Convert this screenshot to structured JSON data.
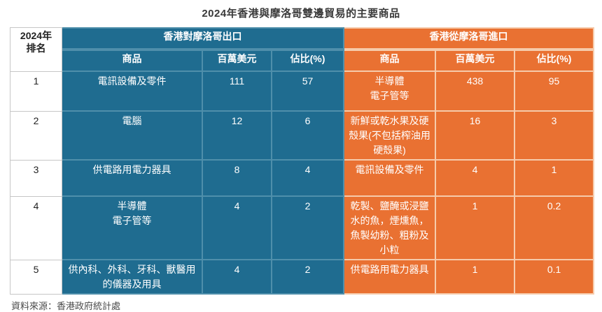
{
  "title": "2024年香港與摩洛哥雙邊貿易的主要商品",
  "source": "資料來源：香港政府統計處",
  "colors": {
    "export_bg": "#1F6C90",
    "import_bg": "#E97132",
    "header_text": "#FFFFFF",
    "rank_text": "#222222"
  },
  "table": {
    "rank_header": "2024年\n排名",
    "groups": {
      "export": "香港對摩洛哥出口",
      "import": "香港從摩洛哥進口"
    },
    "columns": {
      "product": "商品",
      "value": "百萬美元",
      "share": "佔比(%)"
    },
    "rows": [
      {
        "rank": "1",
        "export": {
          "product": "電訊設備及零件",
          "value": "111",
          "share": "57"
        },
        "import": {
          "product": "半導體\n電子管等",
          "value": "438",
          "share": "95"
        }
      },
      {
        "rank": "2",
        "export": {
          "product": "電腦",
          "value": "12",
          "share": "6"
        },
        "import": {
          "product": "新鮮或乾水果及硬殼果(不包括榨油用硬殼果)",
          "value": "16",
          "share": "3"
        }
      },
      {
        "rank": "3",
        "export": {
          "product": "供電路用電力器具",
          "value": "8",
          "share": "4"
        },
        "import": {
          "product": "電訊設備及零件",
          "value": "4",
          "share": "1"
        }
      },
      {
        "rank": "4",
        "export": {
          "product": "半導體\n電子管等",
          "value": "4",
          "share": "2"
        },
        "import": {
          "product": "乾製、鹽醃或浸鹽水的魚，煙燻魚，魚製幼粉、粗粉及小粒",
          "value": "1",
          "share": "0.2"
        }
      },
      {
        "rank": "5",
        "export": {
          "product": "供內科、外科、牙科、獸醫用的儀器及用具",
          "value": "4",
          "share": "2"
        },
        "import": {
          "product": "供電路用電力器具",
          "value": "1",
          "share": "0.1"
        }
      }
    ]
  },
  "chart_data": {
    "type": "table",
    "title": "2024年香港與摩洛哥雙邊貿易的主要商品",
    "source": "資料來源：香港政府統計處",
    "column_groups": [
      "2024年排名",
      "香港對摩洛哥出口",
      "香港從摩洛哥進口"
    ],
    "columns": [
      "排名",
      "出口商品",
      "出口百萬美元",
      "出口佔比(%)",
      "進口商品",
      "進口百萬美元",
      "進口佔比(%)"
    ],
    "rows": [
      [
        1,
        "電訊設備及零件",
        111,
        57,
        "半導體電子管等",
        438,
        95
      ],
      [
        2,
        "電腦",
        12,
        6,
        "新鮮或乾水果及硬殼果(不包括榨油用硬殼果)",
        16,
        3
      ],
      [
        3,
        "供電路用電力器具",
        8,
        4,
        "電訊設備及零件",
        4,
        1
      ],
      [
        4,
        "半導體電子管等",
        4,
        2,
        "乾製、鹽醃或浸鹽水的魚，煙燻魚，魚製幼粉、粗粉及小粒",
        1,
        0.2
      ],
      [
        5,
        "供內科、外科、牙科、獸醫用的儀器及用具",
        4,
        2,
        "供電路用電力器具",
        1,
        0.1
      ]
    ]
  }
}
